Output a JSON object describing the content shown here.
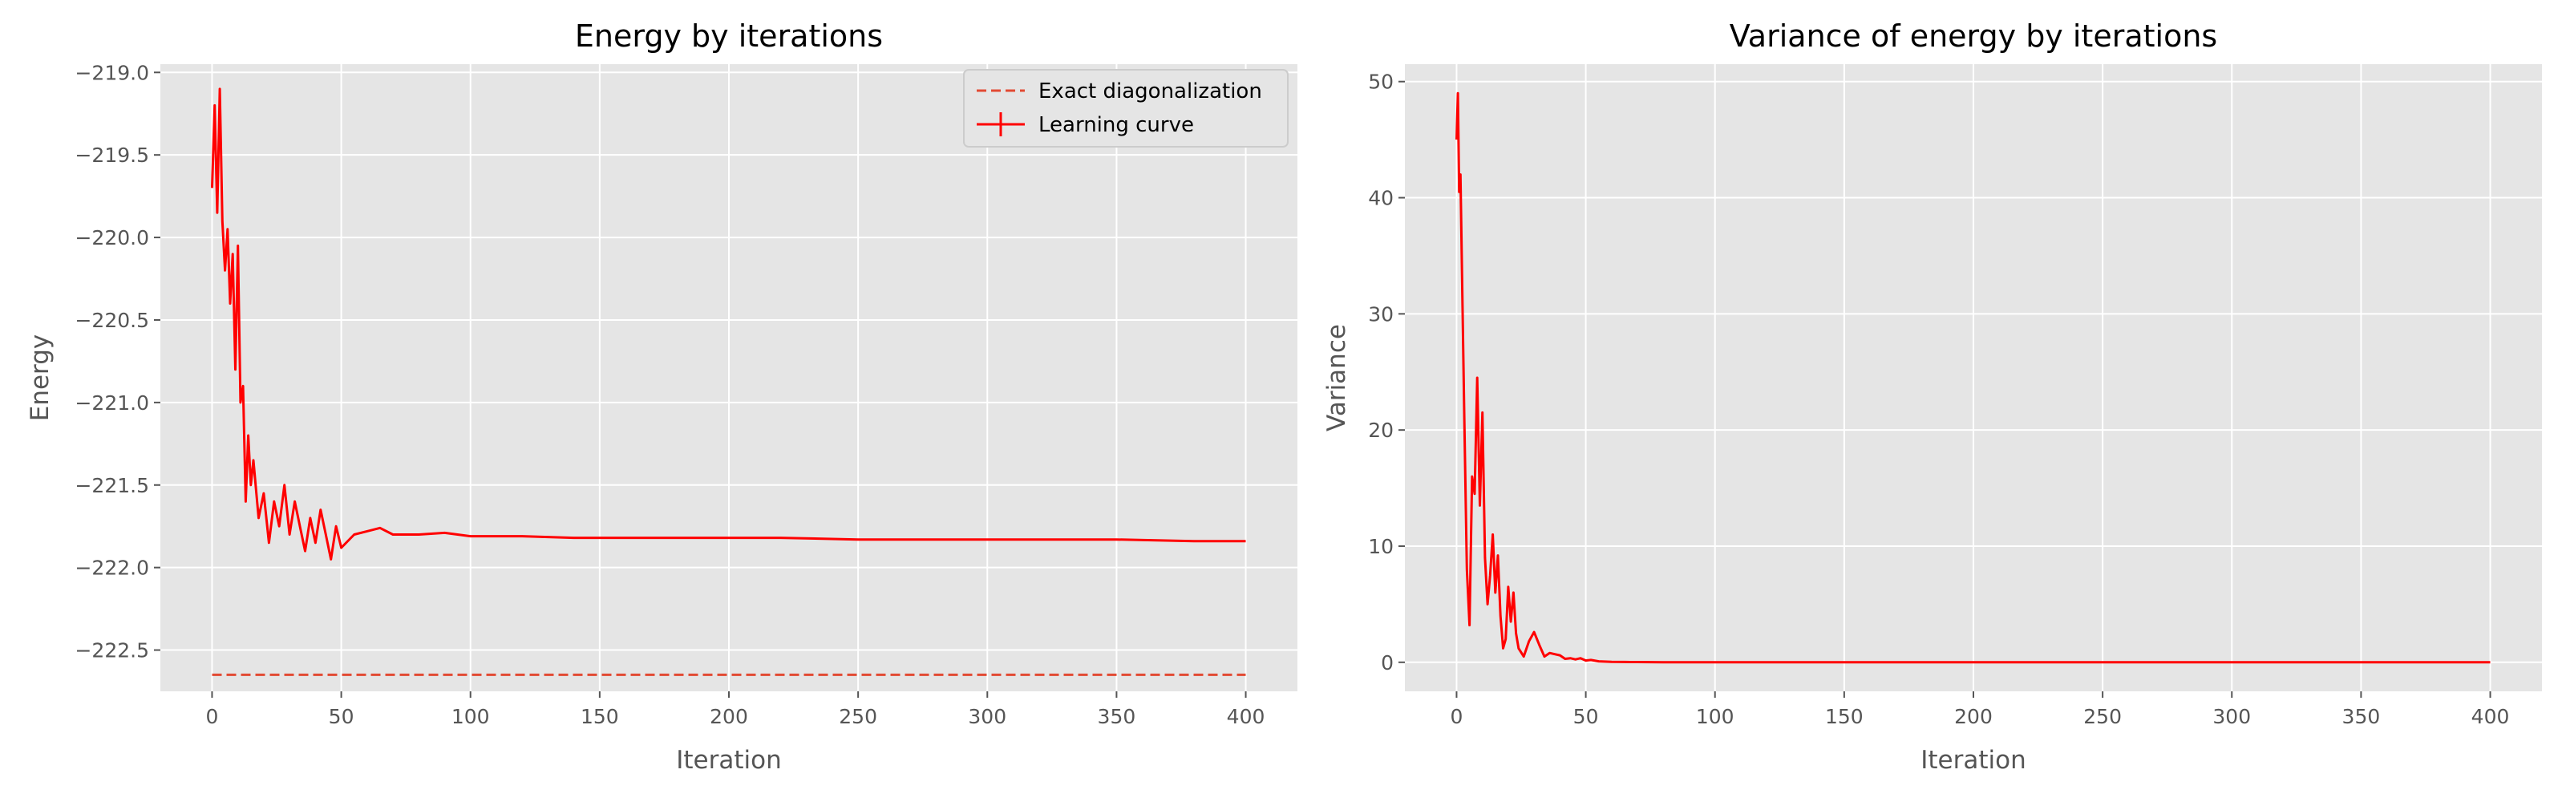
{
  "colors": {
    "background": "#ffffff",
    "plot_bg": "#e5e5e5",
    "grid": "#ffffff",
    "tick_text": "#555555",
    "line": "#ff0000",
    "exact": "#e24a33",
    "legend_bg": "#e5e5e5",
    "legend_border": "#cccccc"
  },
  "chart_data": [
    {
      "type": "line",
      "title": "Energy by iterations",
      "xlabel": "Iteration",
      "ylabel": "Energy",
      "xlim": [
        -20,
        420
      ],
      "ylim": [
        -222.75,
        -218.95
      ],
      "x_ticks": [
        0,
        50,
        100,
        150,
        200,
        250,
        300,
        350,
        400
      ],
      "x_tick_labels": [
        "0",
        "50",
        "100",
        "150",
        "200",
        "250",
        "300",
        "350",
        "400"
      ],
      "y_ticks": [
        -219.0,
        -219.5,
        -220.0,
        -220.5,
        -221.0,
        -221.5,
        -222.0,
        -222.5
      ],
      "y_tick_labels": [
        "−219.0",
        "−219.5",
        "−220.0",
        "−220.5",
        "−221.0",
        "−221.5",
        "−222.0",
        "−222.5"
      ],
      "grid": true,
      "legend_position": "top-right",
      "legend": [
        "Exact diagonalization",
        "Learning curve"
      ],
      "series": [
        {
          "name": "Exact diagonalization",
          "style": "dashed",
          "x": [
            0,
            400
          ],
          "y": [
            -222.65,
            -222.65
          ]
        },
        {
          "name": "Learning curve",
          "style": "solid",
          "x": [
            0,
            1,
            2,
            3,
            4,
            5,
            6,
            7,
            8,
            9,
            10,
            11,
            12,
            13,
            14,
            15,
            16,
            18,
            20,
            22,
            24,
            26,
            28,
            30,
            32,
            34,
            36,
            38,
            40,
            42,
            44,
            46,
            48,
            50,
            55,
            60,
            65,
            70,
            80,
            90,
            100,
            120,
            140,
            160,
            180,
            200,
            220,
            250,
            280,
            300,
            320,
            350,
            380,
            400
          ],
          "y": [
            -219.7,
            -219.2,
            -219.85,
            -219.1,
            -219.9,
            -220.2,
            -219.95,
            -220.4,
            -220.1,
            -220.8,
            -220.05,
            -221.0,
            -220.9,
            -221.6,
            -221.2,
            -221.5,
            -221.35,
            -221.7,
            -221.55,
            -221.85,
            -221.6,
            -221.75,
            -221.5,
            -221.8,
            -221.6,
            -221.75,
            -221.9,
            -221.7,
            -221.85,
            -221.65,
            -221.8,
            -221.95,
            -221.75,
            -221.88,
            -221.8,
            -221.78,
            -221.76,
            -221.8,
            -221.8,
            -221.79,
            -221.81,
            -221.81,
            -221.82,
            -221.82,
            -221.82,
            -221.82,
            -221.82,
            -221.83,
            -221.83,
            -221.83,
            -221.83,
            -221.83,
            -221.84,
            -221.84
          ]
        }
      ]
    },
    {
      "type": "line",
      "title": "Variance of energy by iterations",
      "xlabel": "Iteration",
      "ylabel": "Variance",
      "xlim": [
        -20,
        420
      ],
      "ylim": [
        -2.5,
        51.5
      ],
      "x_ticks": [
        0,
        50,
        100,
        150,
        200,
        250,
        300,
        350,
        400
      ],
      "x_tick_labels": [
        "0",
        "50",
        "100",
        "150",
        "200",
        "250",
        "300",
        "350",
        "400"
      ],
      "y_ticks": [
        0,
        10,
        20,
        30,
        40,
        50
      ],
      "y_tick_labels": [
        "0",
        "10",
        "20",
        "30",
        "40",
        "50"
      ],
      "grid": true,
      "series": [
        {
          "x": [
            0,
            0.5,
            1,
            1.5,
            2,
            3,
            4,
            5,
            6,
            7,
            8,
            9,
            10,
            11,
            12,
            13,
            14,
            15,
            16,
            17,
            18,
            19,
            20,
            21,
            22,
            23,
            24,
            26,
            28,
            30,
            32,
            34,
            36,
            38,
            40,
            42,
            44,
            46,
            48,
            50,
            52,
            55,
            60,
            65,
            70,
            80,
            100,
            150,
            200,
            250,
            300,
            350,
            400
          ],
          "y": [
            45,
            49,
            40.5,
            42,
            35,
            21,
            8,
            3.2,
            16,
            14.5,
            24.5,
            13.5,
            21.5,
            9,
            5,
            7.5,
            11,
            6,
            9.2,
            4,
            1.2,
            2,
            6.5,
            3.5,
            6,
            2.5,
            1.2,
            0.5,
            1.8,
            2.6,
            1.5,
            0.5,
            0.8,
            0.7,
            0.6,
            0.3,
            0.35,
            0.25,
            0.35,
            0.15,
            0.2,
            0.08,
            0.04,
            0.03,
            0.02,
            0.01,
            0.01,
            0.01,
            0.01,
            0.01,
            0.01,
            0.01,
            0.01
          ]
        }
      ]
    }
  ]
}
